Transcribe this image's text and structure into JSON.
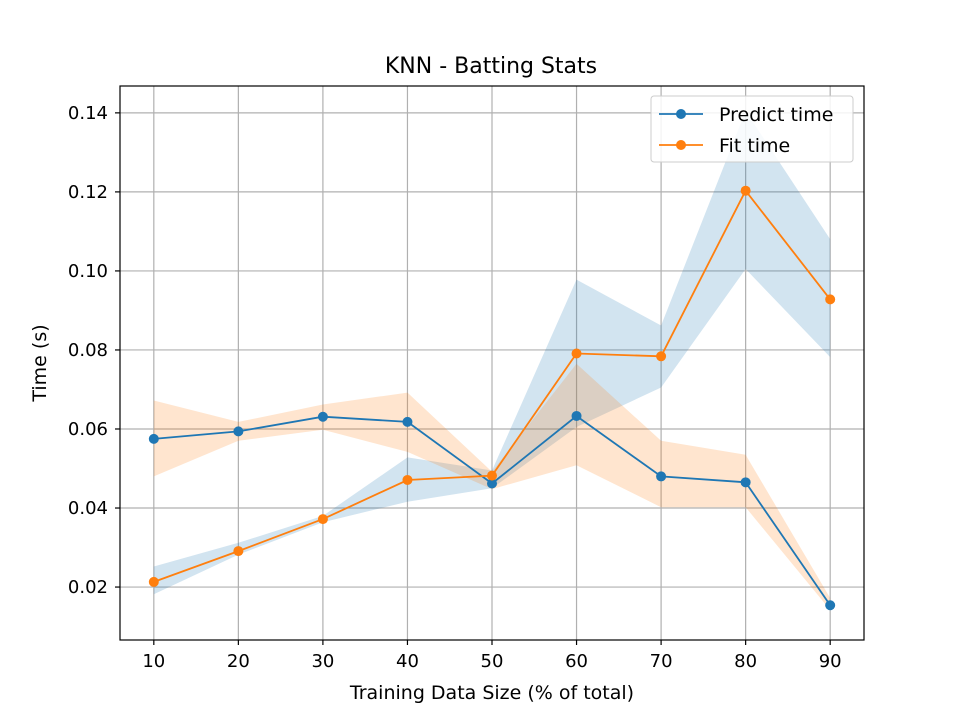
{
  "chart_data": {
    "type": "line",
    "title": "KNN - Batting Stats",
    "xlabel": "Training Data Size (% of total)",
    "ylabel": "Time (s)",
    "x": [
      10,
      20,
      30,
      40,
      50,
      60,
      70,
      80,
      90
    ],
    "xlim": [
      6,
      94
    ],
    "ylim": [
      0.0066,
      0.1468
    ],
    "xticks": [
      10,
      20,
      30,
      40,
      50,
      60,
      70,
      80,
      90
    ],
    "yticks": [
      0.02,
      0.04,
      0.06,
      0.08,
      0.1,
      0.12,
      0.14
    ],
    "ytick_labels": [
      "0.02",
      "0.04",
      "0.06",
      "0.08",
      "0.10",
      "0.12",
      "0.14"
    ],
    "grid": true,
    "legend_position": "top-right",
    "series": [
      {
        "name": "Predict time",
        "color": "#1f77b4",
        "values": [
          0.0575,
          0.0594,
          0.0631,
          0.0618,
          0.0462,
          0.0633,
          0.048,
          0.0465,
          0.0154
        ],
        "band_low": [
          0.0182,
          0.0282,
          0.0364,
          0.0416,
          0.045,
          0.0605,
          0.0705,
          0.1005,
          0.0782
        ],
        "band_high": [
          0.0252,
          0.0312,
          0.038,
          0.0528,
          0.0495,
          0.0978,
          0.0862,
          0.1405,
          0.108
        ]
      },
      {
        "name": "Fit time",
        "color": "#ff7f0e",
        "values": [
          0.0213,
          0.0291,
          0.0372,
          0.0471,
          0.0482,
          0.0791,
          0.0784,
          0.1203,
          0.0928
        ],
        "band_low": [
          0.048,
          0.057,
          0.0598,
          0.0542,
          0.0448,
          0.0508,
          0.0402,
          0.0402,
          0.0142
        ],
        "band_high": [
          0.0672,
          0.0618,
          0.0662,
          0.0692,
          0.0492,
          0.0765,
          0.057,
          0.0535,
          0.0172
        ]
      }
    ]
  }
}
